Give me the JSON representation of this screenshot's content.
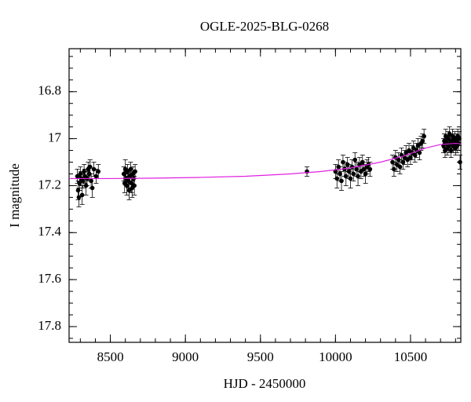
{
  "chart_data": {
    "type": "scatter",
    "title": "OGLE-2025-BLG-0268",
    "x_label": "HJD - 2450000",
    "y_label": "I magnitude",
    "xlim": [
      8225,
      10835
    ],
    "ylim": [
      16.617,
      17.867
    ],
    "y_inverted": true,
    "xticks": [
      8500,
      9000,
      9500,
      10000,
      10500
    ],
    "yticks": [
      16.8,
      17,
      17.2,
      17.4,
      17.6,
      17.8
    ],
    "x_minor_step": 100,
    "y_minor_step": 0.05,
    "points": {
      "color": "#000000",
      "x": [
        8280,
        8285,
        8290,
        8295,
        8300,
        8305,
        8312,
        8318,
        8325,
        8330,
        8338,
        8345,
        8352,
        8360,
        8365,
        8372,
        8380,
        8390,
        8405,
        8420,
        8590,
        8595,
        8600,
        8605,
        8610,
        8615,
        8620,
        8625,
        8630,
        8635,
        8640,
        8645,
        8650,
        8655,
        8660,
        8665,
        9810,
        10000,
        10010,
        10020,
        10030,
        10040,
        10050,
        10060,
        10070,
        10080,
        10090,
        10100,
        10110,
        10120,
        10130,
        10140,
        10150,
        10160,
        10170,
        10180,
        10190,
        10200,
        10210,
        10220,
        10230,
        10380,
        10390,
        10400,
        10410,
        10420,
        10430,
        10440,
        10450,
        10460,
        10470,
        10480,
        10490,
        10500,
        10510,
        10520,
        10530,
        10540,
        10550,
        10560,
        10570,
        10580,
        10590,
        10720,
        10725,
        10730,
        10735,
        10740,
        10745,
        10750,
        10755,
        10760,
        10765,
        10770,
        10775,
        10780,
        10785,
        10790,
        10795,
        10800,
        10805,
        10810,
        10815,
        10820,
        10825,
        10830
      ],
      "y": [
        17.16,
        17.22,
        17.25,
        17.19,
        17.15,
        17.17,
        17.24,
        17.18,
        17.14,
        17.16,
        17.2,
        17.17,
        17.13,
        17.15,
        17.12,
        17.18,
        17.21,
        17.13,
        17.16,
        17.14,
        17.15,
        17.19,
        17.13,
        17.17,
        17.2,
        17.14,
        17.18,
        17.22,
        17.16,
        17.13,
        17.19,
        17.21,
        17.15,
        17.17,
        17.2,
        17.14,
        17.14,
        17.14,
        17.17,
        17.12,
        17.15,
        17.18,
        17.1,
        17.13,
        17.16,
        17.11,
        17.14,
        17.17,
        17.12,
        17.15,
        17.09,
        17.13,
        17.16,
        17.11,
        17.14,
        17.1,
        17.13,
        17.15,
        17.12,
        17.11,
        17.13,
        17.1,
        17.13,
        17.08,
        17.11,
        17.09,
        17.12,
        17.07,
        17.1,
        17.08,
        17.06,
        17.09,
        17.05,
        17.08,
        17.06,
        17.04,
        17.07,
        17.05,
        17.03,
        17.06,
        17.02,
        17.01,
        16.99,
        17.03,
        17.01,
        17.05,
        16.99,
        17.02,
        17.04,
        17,
        17.03,
        16.98,
        17.02,
        17.05,
        17.01,
        16.99,
        17.03,
        17.02,
        17,
        17.04,
        17.01,
        17.03,
        16.99,
        17.02,
        17,
        17.1
      ],
      "err": [
        0.03,
        0.04,
        0.04,
        0.03,
        0.03,
        0.03,
        0.04,
        0.03,
        0.03,
        0.03,
        0.04,
        0.03,
        0.03,
        0.03,
        0.03,
        0.03,
        0.04,
        0.03,
        0.03,
        0.03,
        0.03,
        0.04,
        0.04,
        0.03,
        0.04,
        0.03,
        0.03,
        0.04,
        0.03,
        0.03,
        0.04,
        0.04,
        0.03,
        0.03,
        0.04,
        0.03,
        0.02,
        0.03,
        0.04,
        0.03,
        0.03,
        0.04,
        0.03,
        0.03,
        0.04,
        0.03,
        0.03,
        0.04,
        0.03,
        0.03,
        0.03,
        0.03,
        0.04,
        0.03,
        0.03,
        0.03,
        0.03,
        0.04,
        0.03,
        0.03,
        0.03,
        0.03,
        0.03,
        0.03,
        0.03,
        0.03,
        0.03,
        0.03,
        0.03,
        0.03,
        0.03,
        0.03,
        0.03,
        0.03,
        0.03,
        0.03,
        0.03,
        0.03,
        0.03,
        0.03,
        0.03,
        0.03,
        0.03,
        0.03,
        0.03,
        0.03,
        0.03,
        0.03,
        0.03,
        0.03,
        0.03,
        0.03,
        0.03,
        0.03,
        0.03,
        0.03,
        0.03,
        0.03,
        0.03,
        0.03,
        0.03,
        0.03,
        0.03,
        0.03,
        0.03,
        0.03
      ]
    },
    "model": {
      "color": "#e020e0",
      "x": [
        8225,
        8500,
        8800,
        9100,
        9400,
        9700,
        9900,
        10100,
        10300,
        10450,
        10600,
        10700,
        10800,
        10835
      ],
      "y": [
        17.17,
        17.17,
        17.168,
        17.165,
        17.16,
        17.15,
        17.14,
        17.125,
        17.1,
        17.075,
        17.04,
        17.025,
        17.02,
        17.022
      ]
    }
  }
}
